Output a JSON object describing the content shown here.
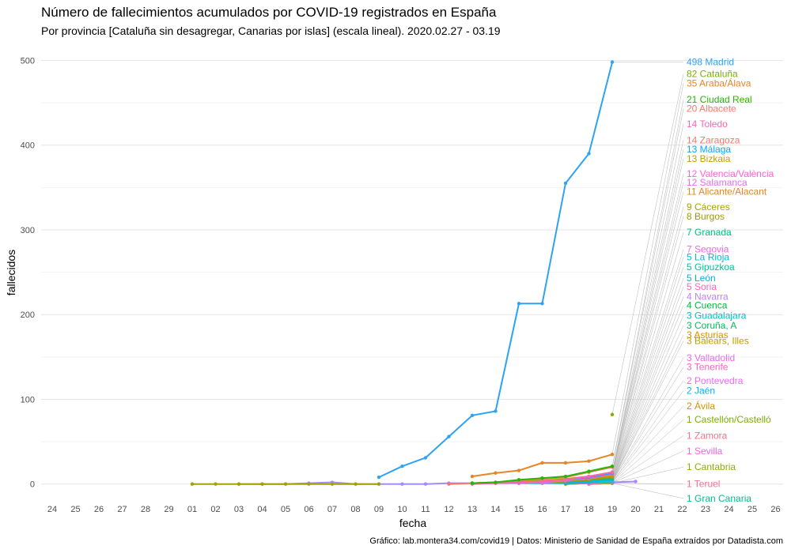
{
  "chart_data": {
    "type": "line",
    "title": "Número de fallecimientos acumulados por COVID-19 registrados en España",
    "subtitle": "Por provincia [Cataluña sin desagregar, Canarias por islas] (escala lineal). 2020.02.27 - 03.19",
    "xlabel": "fecha",
    "ylabel": "fallecidos",
    "caption": "Gráfico: lab.montera34.com/covid19 | Datos: Ministerio de Sanidad de España extraídos por Datadista.com",
    "x_ticks": [
      "24",
      "25",
      "26",
      "27",
      "28",
      "29",
      "01",
      "02",
      "03",
      "04",
      "05",
      "06",
      "07",
      "08",
      "09",
      "10",
      "11",
      "12",
      "13",
      "14",
      "15",
      "16",
      "17",
      "18",
      "19",
      "20",
      "21",
      "22",
      "23",
      "24",
      "25",
      "26"
    ],
    "y_ticks": [
      0,
      100,
      200,
      300,
      400,
      500
    ],
    "ylim": [
      -18,
      520
    ],
    "grid": true,
    "legend": "none",
    "series": [
      {
        "name": "Madrid",
        "label": "498 Madrid",
        "color": "#2ea3f2",
        "start": 14,
        "values": [
          8,
          21,
          31,
          56,
          81,
          86,
          213,
          213,
          355,
          390,
          498
        ]
      },
      {
        "name": "Cataluña",
        "label": "82 Cataluña",
        "color": "#7cae00",
        "start": 24,
        "values": [
          82
        ],
        "points_only": true
      },
      {
        "name": "Araba/Álava",
        "label": "35 Araba/Álava",
        "color": "#e88526",
        "start": 18,
        "values": [
          9,
          13,
          16,
          25,
          25,
          27,
          35
        ]
      },
      {
        "name": "Ciudad Real",
        "label": "21 Ciudad Real",
        "color": "#24b700",
        "start": 18,
        "values": [
          1,
          2,
          5,
          7,
          9,
          15,
          21
        ]
      },
      {
        "name": "Albacete",
        "label": "20 Albacete",
        "color": "#f8766d",
        "start": 18,
        "values": [
          1,
          2,
          4,
          6,
          8,
          14,
          20
        ]
      },
      {
        "name": "Toledo",
        "label": "14 Toledo",
        "color": "#ff65ac",
        "start": 18,
        "values": [
          0,
          1,
          2,
          3,
          5,
          9,
          14
        ]
      },
      {
        "name": "Zaragoza",
        "label": "14 Zaragoza",
        "color": "#f8766d",
        "start": 17,
        "values": [
          0,
          1,
          1,
          2,
          3,
          5,
          9,
          14
        ]
      },
      {
        "name": "Málaga",
        "label": "13 Málaga",
        "color": "#00a9ff",
        "start": 18,
        "values": [
          1,
          1,
          2,
          3,
          5,
          8,
          13
        ]
      },
      {
        "name": "Bizkaia",
        "label": "13 Bizkaia",
        "color": "#c99800",
        "start": 18,
        "values": [
          1,
          2,
          3,
          4,
          6,
          9,
          13
        ]
      },
      {
        "name": "Valencia/València",
        "label": "12 Valencia/València",
        "color": "#fc61d5",
        "start": 18,
        "values": [
          1,
          1,
          2,
          3,
          5,
          8,
          12
        ]
      },
      {
        "name": "Salamanca",
        "label": "12 Salamanca",
        "color": "#e76bf3",
        "start": 20,
        "values": [
          1,
          2,
          4,
          7,
          12
        ]
      },
      {
        "name": "Alicante/Alacant",
        "label": "11 Alicante/Alacant",
        "color": "#e7861b",
        "start": 19,
        "values": [
          1,
          2,
          3,
          5,
          7,
          11
        ]
      },
      {
        "name": "Cáceres",
        "label": "9 Cáceres",
        "color": "#aba300",
        "start": 20,
        "values": [
          1,
          2,
          4,
          6,
          9
        ]
      },
      {
        "name": "Burgos",
        "label": "8 Burgos",
        "color": "#9c9c00",
        "start": 20,
        "values": [
          1,
          2,
          3,
          5,
          8
        ]
      },
      {
        "name": "Granada",
        "label": "7 Granada",
        "color": "#00bf7d",
        "start": 20,
        "values": [
          1,
          2,
          3,
          5,
          7
        ]
      },
      {
        "name": "Segovia",
        "label": "7 Segovia",
        "color": "#f564e3",
        "start": 21,
        "values": [
          1,
          3,
          5,
          7
        ]
      },
      {
        "name": "La Rioja",
        "label": "5 La Rioja",
        "color": "#00b8e7",
        "start": 20,
        "values": [
          1,
          1,
          2,
          3,
          5
        ]
      },
      {
        "name": "Gipuzkoa",
        "label": "5 Gipuzkoa",
        "color": "#00c19a",
        "start": 20,
        "values": [
          1,
          2,
          3,
          4,
          5
        ]
      },
      {
        "name": "León",
        "label": "5 León",
        "color": "#00b0f6",
        "start": 21,
        "values": [
          1,
          2,
          3,
          5
        ]
      },
      {
        "name": "Soria",
        "label": "5 Soria",
        "color": "#ff61c3",
        "start": 21,
        "values": [
          1,
          2,
          3,
          5
        ]
      },
      {
        "name": "Navarra",
        "label": "4 Navarra",
        "color": "#b983ff",
        "start": 21,
        "values": [
          1,
          2,
          3,
          4
        ]
      },
      {
        "name": "Cuenca",
        "label": "4 Cuenca",
        "color": "#00ba38",
        "start": 21,
        "values": [
          1,
          2,
          3,
          4
        ]
      },
      {
        "name": "Guadalajara",
        "label": "3 Guadalajara",
        "color": "#00bfc4",
        "start": 21,
        "values": [
          1,
          1,
          2,
          3
        ]
      },
      {
        "name": "Coruña, A",
        "label": "3 Coruña, A",
        "color": "#00bd5c",
        "start": 22,
        "values": [
          1,
          2,
          3
        ]
      },
      {
        "name": "Asturias",
        "label": "3 Asturias",
        "color": "#d89000",
        "start": 22,
        "values": [
          1,
          2,
          3
        ]
      },
      {
        "name": "Balears, Illes",
        "label": "3 Balears, Illes",
        "color": "#c49a00",
        "start": 22,
        "values": [
          1,
          2,
          3
        ]
      },
      {
        "name": "Valladolid",
        "label": "3 Valladolid",
        "color": "#e76bf3",
        "start": 22,
        "values": [
          1,
          2,
          3
        ]
      },
      {
        "name": "Tenerife",
        "label": "3 Tenerife",
        "color": "#ff62bc",
        "start": 22,
        "values": [
          1,
          2,
          3
        ]
      },
      {
        "name": "Pontevedra",
        "label": "2 Pontevedra",
        "color": "#e76bf3",
        "start": 22,
        "values": [
          1,
          1,
          2
        ]
      },
      {
        "name": "Jaén",
        "label": "2 Jaén",
        "color": "#00b4ef",
        "start": 22,
        "values": [
          1,
          1,
          2
        ]
      },
      {
        "name": "Ávila",
        "label": "2 Ávila",
        "color": "#d39200",
        "start": 23,
        "values": [
          1,
          2
        ]
      },
      {
        "name": "Castellón/Castelló",
        "label": "1 Castellón/Castelló",
        "color": "#7cae00",
        "start": 22,
        "values": [
          0,
          1,
          1
        ]
      },
      {
        "name": "Zamora",
        "label": "1 Zamora",
        "color": "#fd6f8e",
        "start": 23,
        "values": [
          0,
          1
        ]
      },
      {
        "name": "Sevilla",
        "label": "1 Sevilla",
        "color": "#f763e0",
        "start": 23,
        "values": [
          1,
          1
        ]
      },
      {
        "name": "Cantabria",
        "label": "1 Cantabria",
        "color": "#8fad00",
        "start": 23,
        "values": [
          0,
          1
        ]
      },
      {
        "name": "Teruel",
        "label": "1 Teruel",
        "color": "#ff6c91",
        "start": 23,
        "values": [
          0,
          1
        ]
      },
      {
        "name": "Gran Canaria",
        "label": "1 Gran Canaria",
        "color": "#00c08b",
        "start": 22,
        "values": [
          0,
          1,
          1
        ]
      },
      {
        "name": "early-olive",
        "color": "#a5a200",
        "start": 6,
        "values": [
          0,
          0,
          0,
          0,
          0,
          0,
          0,
          0,
          0
        ],
        "hide_label": true
      },
      {
        "name": "early-purple",
        "color": "#a58aff",
        "start": 8,
        "values": [
          0,
          0,
          0,
          1,
          2,
          0,
          0,
          0,
          0,
          1,
          1,
          1,
          1,
          1,
          1,
          2,
          2,
          3
        ],
        "hide_label": true
      }
    ],
    "label_y": [
      498,
      484,
      473,
      454,
      443,
      425,
      406,
      395,
      384,
      366,
      356,
      345,
      327,
      316,
      297,
      277,
      268,
      256,
      243,
      233,
      221,
      211,
      199,
      187,
      176,
      169,
      149,
      138,
      122,
      110,
      92,
      76,
      57,
      39,
      20,
      0,
      -17
    ]
  }
}
